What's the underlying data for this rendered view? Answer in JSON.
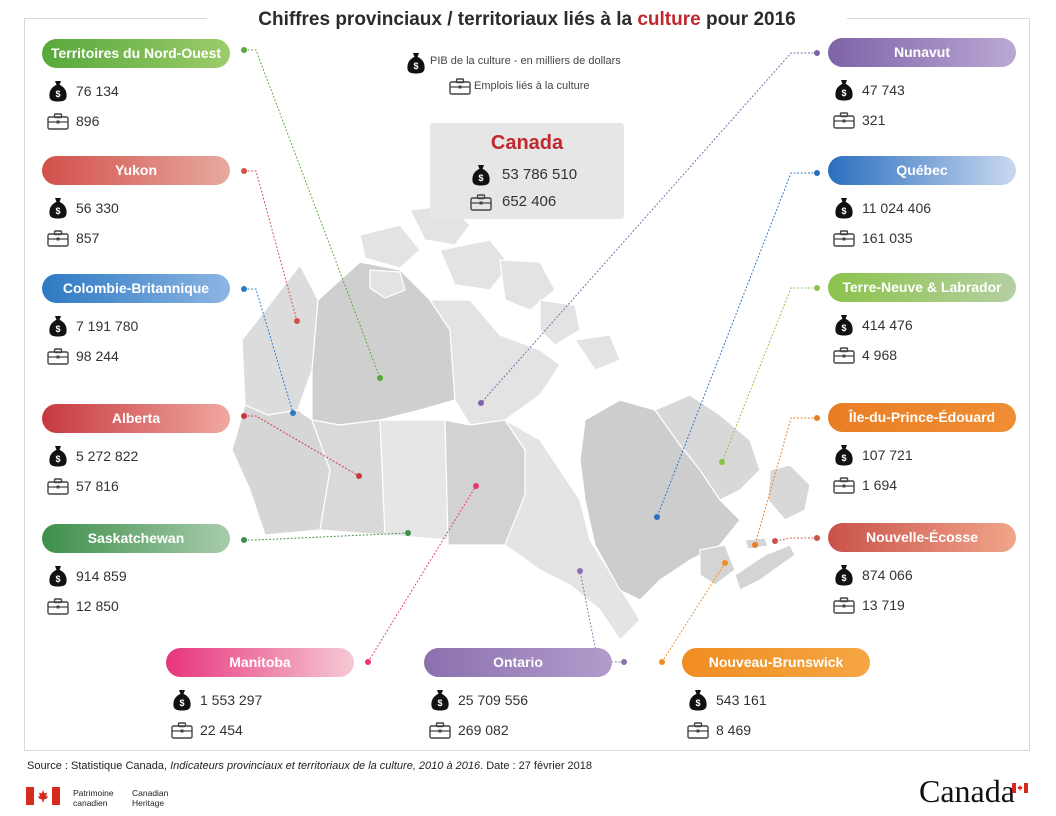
{
  "title": {
    "before": "Chiffres provinciaux / territoriaux liés à la ",
    "highlight": "culture",
    "after": " pour 2016"
  },
  "legend": {
    "gdp": "PIB de la culture - en milliers de dollars",
    "jobs": "Emplois liés à la culture"
  },
  "canada": {
    "name": "Canada",
    "gdp": "53 786 510",
    "jobs": "652 406"
  },
  "regions": [
    {
      "name": "Territoires du Nord-Ouest",
      "gdp": "76 134",
      "jobs": "896",
      "color": "#57a83a",
      "color2": "#9ccc6a"
    },
    {
      "name": "Yukon",
      "gdp": "56 330",
      "jobs": "857",
      "color": "#d2504a",
      "color2": "#e6aaa0"
    },
    {
      "name": "Colombie-Britannique",
      "gdp": "7 191 780",
      "jobs": "98 244",
      "color": "#2d79c3",
      "color2": "#8db6e3"
    },
    {
      "name": "Alberta",
      "gdp": "5 272 822",
      "jobs": "57 816",
      "color": "#c7393f",
      "color2": "#f0a8a0"
    },
    {
      "name": "Saskatchewan",
      "gdp": "914 859",
      "jobs": "12 850",
      "color": "#3d8f4a",
      "color2": "#a8ccac"
    },
    {
      "name": "Manitoba",
      "gdp": "1 553 297",
      "jobs": "22 454",
      "color": "#e8357c",
      "color2": "#f5c9d4"
    },
    {
      "name": "Ontario",
      "gdp": "25 709 556",
      "jobs": "269 082",
      "color": "#8b70ae",
      "color2": "#b29ccc"
    },
    {
      "name": "Nouveau-Brunswick",
      "gdp": "543 161",
      "jobs": "8 469",
      "color": "#f08d22",
      "color2": "#f5a642"
    },
    {
      "name": "Nunavut",
      "gdp": "47 743",
      "jobs": "321",
      "color": "#7e63a8",
      "color2": "#b9a8d4"
    },
    {
      "name": "Québec",
      "gdp": "11 024 406",
      "jobs": "161 035",
      "color": "#2b6fbf",
      "color2": "#c9d8ef"
    },
    {
      "name": "Terre-Neuve & Labrador",
      "gdp": "414 476",
      "jobs": "4 968",
      "color": "#8bc34a",
      "color2": "#b5cfa3"
    },
    {
      "name": "Île-du-Prince-Édouard",
      "gdp": "107 721",
      "jobs": "1 694",
      "color": "#e87e24",
      "color2": "#f08d35"
    },
    {
      "name": "Nouvelle-Écosse",
      "gdp": "874 066",
      "jobs": "13 719",
      "color": "#c9524a",
      "color2": "#f0a58a"
    }
  ],
  "source": {
    "prefix": "Source : Statistique Canada, ",
    "italic": "Indicateurs provinciaux et territoriaux de la culture, 2010 à 2016",
    "suffix": ". Date : 27 février 2018"
  },
  "footer": {
    "pch_fr_1": "Patrimoine",
    "pch_fr_2": "canadien",
    "pch_en_1": "Canadian",
    "pch_en_2": "Heritage",
    "wordmark": "Canada"
  },
  "icons": {
    "gdp": "money-bag-icon",
    "jobs": "briefcase-icon"
  }
}
